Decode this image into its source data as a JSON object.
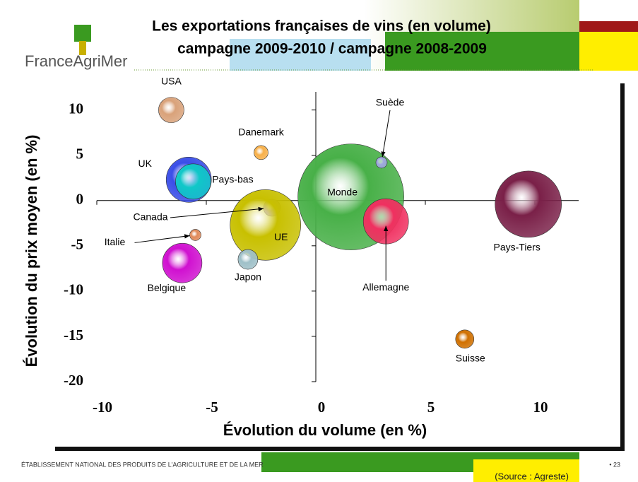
{
  "header": {
    "logo": "FranceAgriMer",
    "title_line1": "Les exportations françaises de vins (en volume)",
    "title_line2": "campagne 2009-2010 / campagne 2008-2009"
  },
  "chart_data": {
    "type": "bubble",
    "xlabel": "Évolution du volume (en %)",
    "ylabel": "Évolution du prix moyen (en %)",
    "xlim": [
      -10,
      12
    ],
    "ylim": [
      -20,
      12
    ],
    "xticks": [
      -10,
      -5,
      0,
      5,
      10
    ],
    "yticks": [
      10,
      5,
      0,
      -5,
      -10,
      -15,
      -20
    ],
    "series": [
      {
        "name": "USA",
        "x": -6.6,
        "y": 10,
        "size": 18,
        "color": "#d9a27a"
      },
      {
        "name": "Danemark",
        "x": -2.5,
        "y": 5.3,
        "size": 10,
        "color": "#f7b04a"
      },
      {
        "name": "UK",
        "x": -5.8,
        "y": 2.3,
        "size": 32,
        "color": "#3a4ee8"
      },
      {
        "name": "Pays-bas",
        "x": -5.6,
        "y": 2.1,
        "size": 25,
        "color": "#10c8c8"
      },
      {
        "name": "Canada",
        "x": -2.0,
        "y": -0.8,
        "size": 12,
        "color": "#9a70d0"
      },
      {
        "name": "Italie",
        "x": -5.5,
        "y": -3.8,
        "size": 8,
        "color": "#e08a5a"
      },
      {
        "name": "UE",
        "x": -2.3,
        "y": -2.7,
        "size": 50,
        "color": "#c8c000"
      },
      {
        "name": "Japon",
        "x": -3.1,
        "y": -6.5,
        "size": 14,
        "color": "#9fc0c8"
      },
      {
        "name": "Belgique",
        "x": -6.1,
        "y": -6.9,
        "size": 28,
        "color": "#d010d0"
      },
      {
        "name": "Monde",
        "x": 1.6,
        "y": 0.4,
        "size": 75,
        "color": "#48b048"
      },
      {
        "name": "Suède",
        "x": 3.0,
        "y": 4.2,
        "size": 8,
        "color": "#a0a8e0"
      },
      {
        "name": "Allemagne",
        "x": 3.2,
        "y": -2.3,
        "size": 32,
        "color": "#f03060"
      },
      {
        "name": "Pays-Tiers",
        "x": 9.7,
        "y": -0.4,
        "size": 47,
        "color": "#7a2048"
      },
      {
        "name": "Suisse",
        "x": 6.8,
        "y": -15.3,
        "size": 13,
        "color": "#d07000"
      }
    ]
  },
  "footer": {
    "org": "ÉTABLISSEMENT NATIONAL DES PRODUITS DE L'AGRICULTURE ET DE LA MER",
    "source": "(Source : Agreste)",
    "page": "• 23"
  }
}
